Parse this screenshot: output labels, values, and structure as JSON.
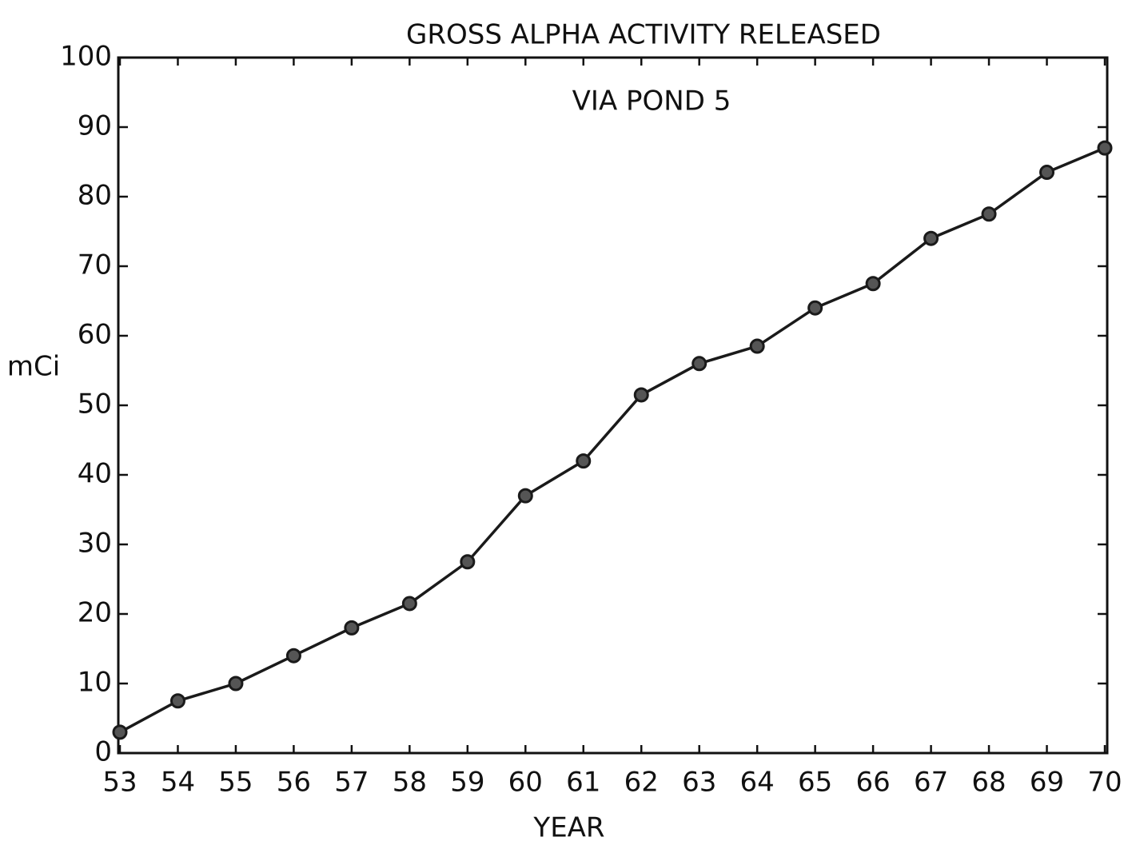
{
  "chart_data": {
    "type": "line",
    "title": "GROSS ALPHA ACTIVITY RELEASED",
    "subtitle": "VIA POND 5",
    "y_label": "mCi",
    "x_label": "YEAR",
    "categories": [
      "53",
      "54",
      "55",
      "56",
      "57",
      "58",
      "59",
      "60",
      "61",
      "62",
      "63",
      "64",
      "65",
      "66",
      "67",
      "68",
      "69",
      "70"
    ],
    "values": [
      3,
      7.5,
      10,
      14,
      18,
      21.5,
      27.5,
      37,
      42,
      51.5,
      56,
      58.5,
      64,
      67.5,
      74,
      77.5,
      83.5,
      87
    ],
    "color": "#1a1a1a",
    "ylim": [
      0,
      100
    ],
    "yticks": [
      0,
      10,
      20,
      30,
      40,
      50,
      60,
      70,
      80,
      90,
      100
    ],
    "grid": false
  }
}
